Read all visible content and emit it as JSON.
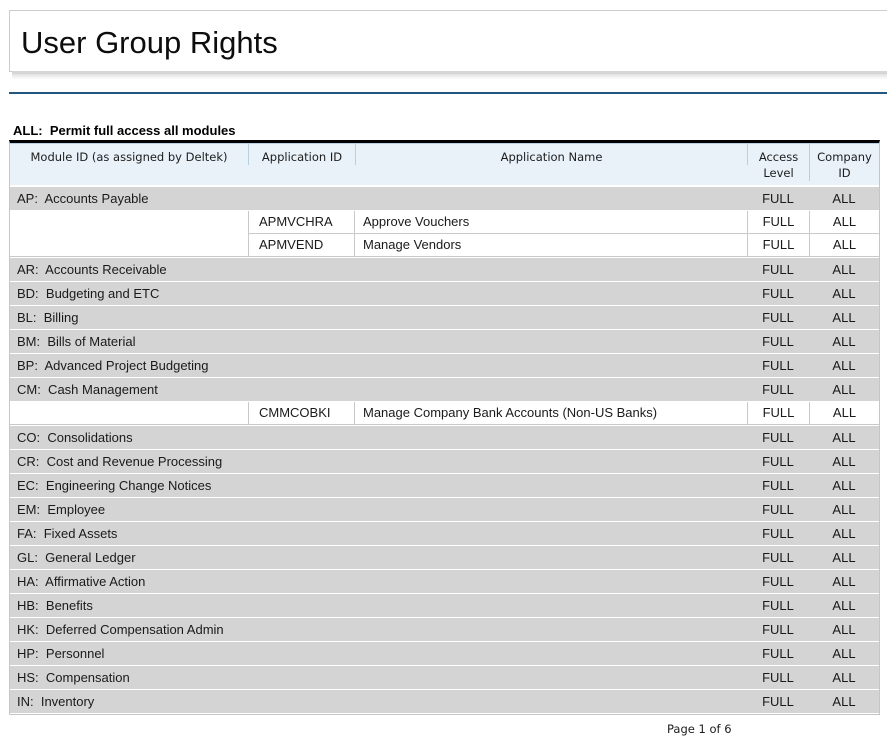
{
  "report": {
    "title": "User Group Rights",
    "subtitle": "ALL:  Permit full access all modules",
    "footer": "Page 1 of 6"
  },
  "colors": {
    "accent_rule": "#23567e",
    "header_bg": "#e9f2f9",
    "header_border": "#b7d0e1",
    "module_row_bg": "#d4d4d4",
    "grid_border": "#c9c9c9",
    "table_top_border": "#000000"
  },
  "table": {
    "headers": {
      "module": "Module ID (as assigned by Deltek)",
      "app_id": "Application ID",
      "app_name": "Application Name",
      "access": "Access Level",
      "company": "Company ID"
    },
    "groups": [
      {
        "module": "AP:  Accounts Payable",
        "access": "FULL",
        "company": "ALL",
        "apps": [
          {
            "id": "APMVCHRA",
            "name": "Approve Vouchers",
            "access": "FULL",
            "company": "ALL"
          },
          {
            "id": "APMVEND",
            "name": "Manage Vendors",
            "access": "FULL",
            "company": "ALL"
          }
        ]
      },
      {
        "module": "AR:  Accounts Receivable",
        "access": "FULL",
        "company": "ALL",
        "apps": []
      },
      {
        "module": "BD:  Budgeting and ETC",
        "access": "FULL",
        "company": "ALL",
        "apps": []
      },
      {
        "module": "BL:  Billing",
        "access": "FULL",
        "company": "ALL",
        "apps": []
      },
      {
        "module": "BM:  Bills of Material",
        "access": "FULL",
        "company": "ALL",
        "apps": []
      },
      {
        "module": "BP:  Advanced Project Budgeting",
        "access": "FULL",
        "company": "ALL",
        "apps": []
      },
      {
        "module": "CM:  Cash Management",
        "access": "FULL",
        "company": "ALL",
        "apps": [
          {
            "id": "CMMCOBKI",
            "name": "Manage Company Bank Accounts (Non-US Banks)",
            "access": "FULL",
            "company": "ALL"
          }
        ]
      },
      {
        "module": "CO:  Consolidations",
        "access": "FULL",
        "company": "ALL",
        "apps": []
      },
      {
        "module": "CR:  Cost and Revenue Processing",
        "access": "FULL",
        "company": "ALL",
        "apps": []
      },
      {
        "module": "EC:  Engineering Change Notices",
        "access": "FULL",
        "company": "ALL",
        "apps": []
      },
      {
        "module": "EM:  Employee",
        "access": "FULL",
        "company": "ALL",
        "apps": []
      },
      {
        "module": "FA:  Fixed Assets",
        "access": "FULL",
        "company": "ALL",
        "apps": []
      },
      {
        "module": "GL:  General Ledger",
        "access": "FULL",
        "company": "ALL",
        "apps": []
      },
      {
        "module": "HA:  Affirmative Action",
        "access": "FULL",
        "company": "ALL",
        "apps": []
      },
      {
        "module": "HB:  Benefits",
        "access": "FULL",
        "company": "ALL",
        "apps": []
      },
      {
        "module": "HK:  Deferred Compensation Admin",
        "access": "FULL",
        "company": "ALL",
        "apps": []
      },
      {
        "module": "HP:  Personnel",
        "access": "FULL",
        "company": "ALL",
        "apps": []
      },
      {
        "module": "HS:  Compensation",
        "access": "FULL",
        "company": "ALL",
        "apps": []
      },
      {
        "module": "IN:  Inventory",
        "access": "FULL",
        "company": "ALL",
        "apps": []
      }
    ]
  }
}
